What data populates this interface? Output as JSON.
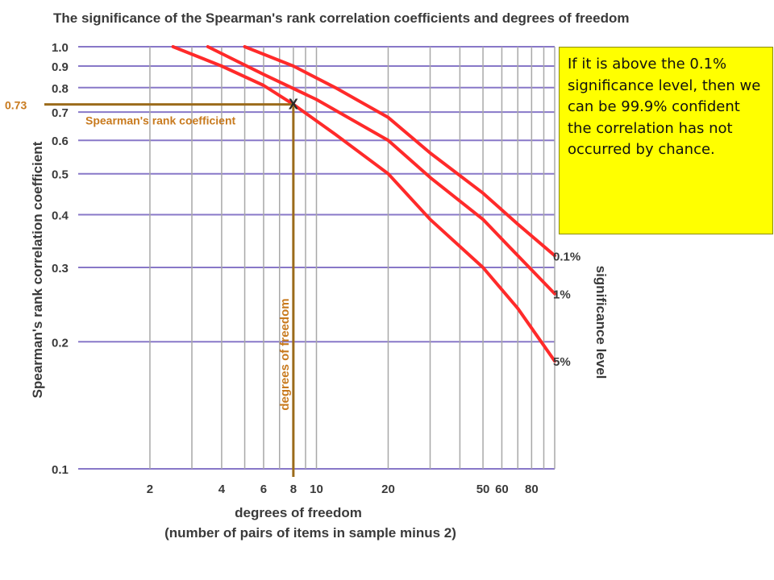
{
  "chart_data": {
    "type": "line",
    "title": "The significance of the Spearman's rank correlation coefficients and degrees of freedom",
    "xlabel": "degrees of freedom",
    "xlabel_sub": "(number of pairs of items in sample minus 2)",
    "ylabel": "Spearman's rank correlation coefficient",
    "x_scale": "log",
    "y_scale": "log",
    "xlim": [
      1,
      100
    ],
    "ylim": [
      0.1,
      1.0
    ],
    "x_ticks": [
      {
        "v": 2,
        "label": "2"
      },
      {
        "v": 4,
        "label": "4"
      },
      {
        "v": 6,
        "label": "6"
      },
      {
        "v": 8,
        "label": "8"
      },
      {
        "v": 10,
        "label": "10"
      },
      {
        "v": 20,
        "label": "20"
      },
      {
        "v": 50,
        "label": "50"
      },
      {
        "v": 60,
        "label": "60"
      },
      {
        "v": 80,
        "label": "80"
      }
    ],
    "x_grid": [
      2,
      3,
      4,
      5,
      6,
      7,
      8,
      9,
      10,
      20,
      30,
      40,
      50,
      60,
      70,
      80,
      90
    ],
    "y_ticks": [
      {
        "v": 1.0,
        "label": "1.0"
      },
      {
        "v": 0.9,
        "label": "0.9"
      },
      {
        "v": 0.8,
        "label": "0.8"
      },
      {
        "v": 0.7,
        "label": "0.7"
      },
      {
        "v": 0.6,
        "label": "0.6"
      },
      {
        "v": 0.5,
        "label": "0.5"
      },
      {
        "v": 0.4,
        "label": "0.4"
      },
      {
        "v": 0.3,
        "label": "0.3"
      },
      {
        "v": 0.2,
        "label": "0.2"
      },
      {
        "v": 0.1,
        "label": "0.1"
      }
    ],
    "legend_title": "significance level",
    "series": [
      {
        "name": "0.1%",
        "color": "#ff2a2a",
        "points": [
          [
            5,
            1.0
          ],
          [
            8,
            0.9
          ],
          [
            12,
            0.8
          ],
          [
            20,
            0.68
          ],
          [
            30,
            0.56
          ],
          [
            50,
            0.45
          ],
          [
            70,
            0.38
          ],
          [
            100,
            0.32
          ]
        ]
      },
      {
        "name": "1%",
        "color": "#ff2a2a",
        "points": [
          [
            3.5,
            1.0
          ],
          [
            6,
            0.86
          ],
          [
            10,
            0.75
          ],
          [
            20,
            0.6
          ],
          [
            30,
            0.49
          ],
          [
            50,
            0.39
          ],
          [
            70,
            0.32
          ],
          [
            100,
            0.26
          ]
        ]
      },
      {
        "name": "5%",
        "color": "#ff2a2a",
        "points": [
          [
            2.5,
            1.0
          ],
          [
            4,
            0.9
          ],
          [
            6,
            0.81
          ],
          [
            8,
            0.73
          ],
          [
            12,
            0.62
          ],
          [
            20,
            0.5
          ],
          [
            30,
            0.39
          ],
          [
            50,
            0.3
          ],
          [
            70,
            0.24
          ],
          [
            100,
            0.18
          ]
        ]
      }
    ],
    "annotations": {
      "point": {
        "x": 8,
        "y": 0.73,
        "marker": "X"
      },
      "y_value_label": "0.73",
      "h_label": "Spearman's rank coefficient",
      "v_label": "degrees of freedom",
      "line_color": "#9b6b1b",
      "label_color": "#c87a1e"
    },
    "grid": true
  },
  "callout": {
    "text": "If it is above the 0.1% significance level, then we can be 99.9% confident the correlation has not occurred by chance."
  }
}
